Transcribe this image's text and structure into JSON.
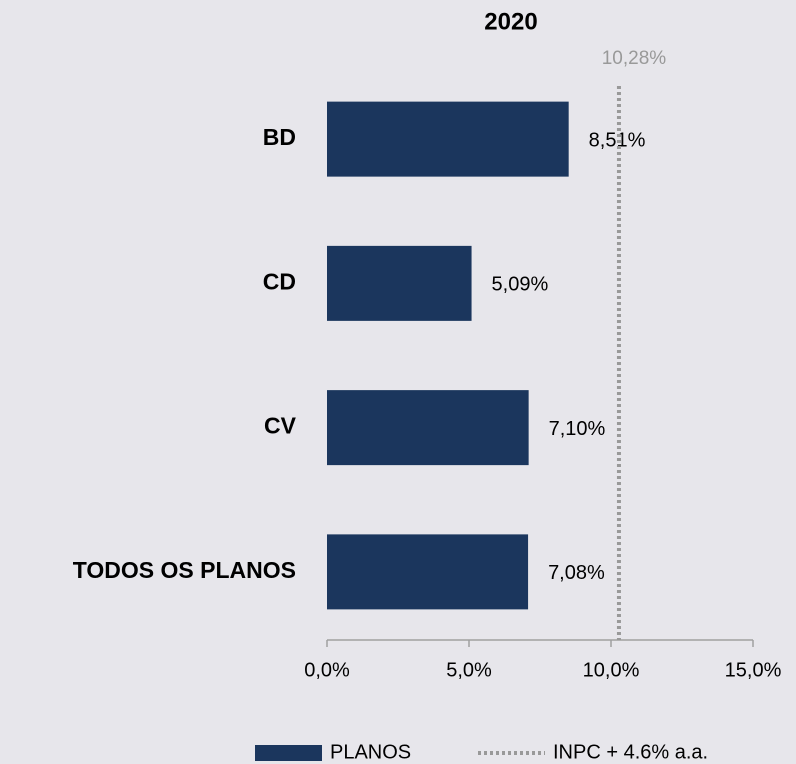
{
  "chart_data": {
    "type": "bar",
    "orientation": "horizontal",
    "title": "2020",
    "categories": [
      "BD",
      "CD",
      "CV",
      "TODOS OS PLANOS"
    ],
    "series": [
      {
        "name": "PLANOS",
        "color": "#1b365d",
        "values": [
          8.51,
          5.09,
          7.1,
          7.08
        ],
        "value_labels": [
          "8,51%",
          "5,09%",
          "7,10%",
          "7,08%"
        ]
      }
    ],
    "reference_line": {
      "name": "INPC + 4.6% a.a.",
      "value": 10.28,
      "label": "10,28%",
      "color": "#999999"
    },
    "xlim": [
      0,
      15
    ],
    "xticks": [
      {
        "value": 0,
        "label": "0,0%"
      },
      {
        "value": 5,
        "label": "5,0%"
      },
      {
        "value": 10,
        "label": "10,0%"
      },
      {
        "value": 15,
        "label": "15,0%"
      }
    ],
    "grid": false,
    "legend": "bottom"
  }
}
